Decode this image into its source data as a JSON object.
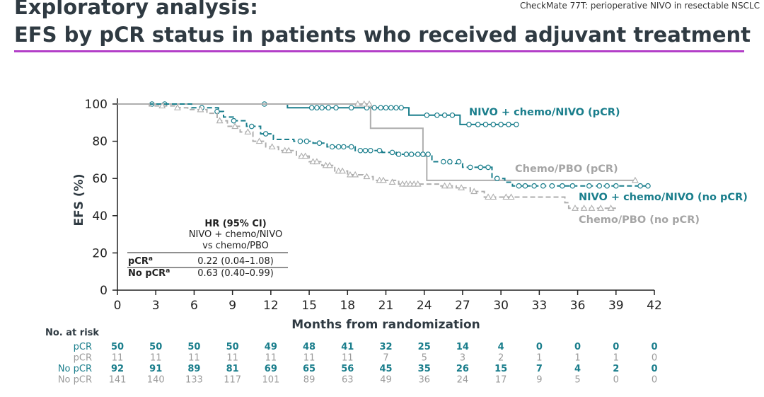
{
  "header": {
    "title_line1": "Exploratory analysis:",
    "title_line2": "EFS by pCR status in patients who received adjuvant treatment",
    "subtitle": "CheckMate 77T: perioperative NIVO in resectable NSCLC"
  },
  "colors": {
    "teal": "#1a7e8c",
    "gray": "#aeaeae",
    "accent": "#b33fc8",
    "axis": "#222222"
  },
  "chart_data": {
    "type": "line",
    "xlabel": "Months from randomization",
    "ylabel": "EFS (%)",
    "xlim": [
      0,
      42
    ],
    "ylim": [
      0,
      100
    ],
    "xticks": [
      0,
      3,
      6,
      9,
      12,
      15,
      18,
      21,
      24,
      27,
      30,
      33,
      36,
      39,
      42
    ],
    "yticks": [
      0,
      20,
      40,
      60,
      80,
      100
    ],
    "series": [
      {
        "name": "NIVO + chemo/NIVO (pCR)",
        "color": "#1a7e8c",
        "dash": false,
        "marker": "circle",
        "steps": [
          [
            0,
            100
          ],
          [
            13.3,
            98
          ],
          [
            22.8,
            94
          ],
          [
            26.8,
            89
          ],
          [
            31.2,
            89
          ]
        ],
        "censors": [
          [
            2.7,
            100
          ],
          [
            3.7,
            100
          ],
          [
            11.5,
            100
          ],
          [
            15.2,
            98
          ],
          [
            15.6,
            98
          ],
          [
            16,
            98
          ],
          [
            16.5,
            98
          ],
          [
            17.1,
            98
          ],
          [
            18.3,
            98
          ],
          [
            19.5,
            98
          ],
          [
            20.1,
            98
          ],
          [
            20.6,
            98
          ],
          [
            21,
            98
          ],
          [
            21.4,
            98
          ],
          [
            21.8,
            98
          ],
          [
            22.2,
            98
          ],
          [
            24.2,
            94
          ],
          [
            25,
            94
          ],
          [
            25.6,
            94
          ],
          [
            26.2,
            94
          ],
          [
            27.5,
            89
          ],
          [
            28.2,
            89
          ],
          [
            28.8,
            89
          ],
          [
            29.4,
            89
          ],
          [
            30,
            89
          ],
          [
            30.6,
            89
          ],
          [
            31.2,
            89
          ]
        ]
      },
      {
        "name": "Chemo/PBO (pCR)",
        "color": "#aeaeae",
        "dash": false,
        "marker": "triangle",
        "steps": [
          [
            0,
            100
          ],
          [
            19.8,
            87
          ],
          [
            23.9,
            72
          ],
          [
            24.2,
            59
          ],
          [
            40.5,
            59
          ]
        ],
        "censors": [
          [
            18.8,
            100
          ],
          [
            19.3,
            100
          ],
          [
            19.7,
            100
          ],
          [
            40.5,
            59
          ]
        ]
      },
      {
        "name": "NIVO + chemo/NIVO (no pCR)",
        "color": "#1a7e8c",
        "dash": true,
        "marker": "circle",
        "steps": [
          [
            0,
            100
          ],
          [
            5.8,
            98
          ],
          [
            7.9,
            96
          ],
          [
            8.3,
            93
          ],
          [
            9.2,
            91
          ],
          [
            10.1,
            88
          ],
          [
            11.2,
            84
          ],
          [
            12.2,
            81
          ],
          [
            13.8,
            80
          ],
          [
            15.3,
            79
          ],
          [
            16.4,
            77
          ],
          [
            18.6,
            75
          ],
          [
            20.7,
            74
          ],
          [
            21.8,
            73
          ],
          [
            24.3,
            73
          ],
          [
            24.6,
            69
          ],
          [
            25.9,
            68
          ],
          [
            26.3,
            68
          ],
          [
            27,
            66
          ],
          [
            28,
            66
          ],
          [
            29.3,
            60
          ],
          [
            30.3,
            58
          ],
          [
            30.9,
            56
          ],
          [
            41.5,
            56
          ]
        ],
        "censors": [
          [
            6.6,
            98
          ],
          [
            7.8,
            96
          ],
          [
            9.1,
            91
          ],
          [
            10.5,
            88
          ],
          [
            11.6,
            84
          ],
          [
            14.3,
            80
          ],
          [
            14.8,
            80
          ],
          [
            15.8,
            79
          ],
          [
            16.8,
            77
          ],
          [
            17.3,
            77
          ],
          [
            17.7,
            77
          ],
          [
            18.3,
            77
          ],
          [
            19,
            75
          ],
          [
            19.4,
            75
          ],
          [
            19.8,
            75
          ],
          [
            20.5,
            75
          ],
          [
            21.5,
            74
          ],
          [
            22,
            73
          ],
          [
            22.6,
            73
          ],
          [
            23,
            73
          ],
          [
            23.5,
            73
          ],
          [
            23.9,
            73
          ],
          [
            24.3,
            73
          ],
          [
            25.5,
            69
          ],
          [
            26,
            69
          ],
          [
            26.7,
            69
          ],
          [
            27.6,
            66
          ],
          [
            28.4,
            66
          ],
          [
            29,
            66
          ],
          [
            29.7,
            60
          ],
          [
            31.4,
            56
          ],
          [
            31.9,
            56
          ],
          [
            32.6,
            56
          ],
          [
            33.3,
            56
          ],
          [
            34,
            56
          ],
          [
            34.8,
            56
          ],
          [
            35.6,
            56
          ],
          [
            36.9,
            56
          ],
          [
            37.7,
            56
          ],
          [
            38.3,
            56
          ],
          [
            39,
            56
          ],
          [
            40.9,
            56
          ],
          [
            41.5,
            56
          ]
        ]
      },
      {
        "name": "Chemo/PBO (no pCR)",
        "color": "#aeaeae",
        "dash": true,
        "marker": "triangle",
        "steps": [
          [
            0,
            100
          ],
          [
            2.5,
            99
          ],
          [
            4.5,
            98
          ],
          [
            5.5,
            97
          ],
          [
            7,
            95
          ],
          [
            7.8,
            91
          ],
          [
            8.6,
            88
          ],
          [
            9.6,
            85
          ],
          [
            10.6,
            80
          ],
          [
            11.6,
            77
          ],
          [
            12.6,
            75
          ],
          [
            14,
            72
          ],
          [
            15,
            69
          ],
          [
            16,
            67
          ],
          [
            17,
            64
          ],
          [
            18,
            62
          ],
          [
            19.2,
            61
          ],
          [
            20,
            59
          ],
          [
            22,
            57
          ],
          [
            24,
            57
          ],
          [
            25.2,
            56
          ],
          [
            26.5,
            55
          ],
          [
            27.6,
            53
          ],
          [
            28.7,
            50
          ],
          [
            31,
            50
          ],
          [
            35,
            47
          ],
          [
            35.3,
            44
          ],
          [
            39,
            44
          ]
        ],
        "censors": [
          [
            3.5,
            99
          ],
          [
            4.7,
            98
          ],
          [
            6.5,
            97
          ],
          [
            8,
            91
          ],
          [
            9.2,
            88
          ],
          [
            10.2,
            85
          ],
          [
            11.1,
            80
          ],
          [
            12.1,
            77
          ],
          [
            13.1,
            75
          ],
          [
            13.4,
            75
          ],
          [
            14.4,
            72
          ],
          [
            14.7,
            72
          ],
          [
            15.3,
            69
          ],
          [
            15.6,
            69
          ],
          [
            16.3,
            67
          ],
          [
            16.6,
            67
          ],
          [
            17.3,
            64
          ],
          [
            17.6,
            64
          ],
          [
            18.2,
            62
          ],
          [
            18.6,
            62
          ],
          [
            19.5,
            61
          ],
          [
            20.5,
            59
          ],
          [
            20.8,
            59
          ],
          [
            21.5,
            58
          ],
          [
            22.3,
            57
          ],
          [
            22.6,
            57
          ],
          [
            22.9,
            57
          ],
          [
            23.2,
            57
          ],
          [
            23.5,
            57
          ],
          [
            25.6,
            56
          ],
          [
            26,
            56
          ],
          [
            26.9,
            55
          ],
          [
            27.9,
            53
          ],
          [
            29,
            50
          ],
          [
            29.4,
            50
          ],
          [
            30.4,
            50
          ],
          [
            30.8,
            50
          ],
          [
            35.8,
            44
          ],
          [
            36.5,
            44
          ],
          [
            37.1,
            44
          ],
          [
            37.8,
            44
          ],
          [
            38.6,
            44
          ]
        ]
      }
    ],
    "series_labels": [
      "NIVO + chemo/NIVO (pCR)",
      "Chemo/PBO (pCR)",
      "NIVO + chemo/NIVO (no pCR)",
      "Chemo/PBO (no pCR)"
    ],
    "hr_table": {
      "heading": "HR (95% CI)",
      "sub1": "NIVO + chemo/NIVO",
      "sub2": "vs chemo/PBO",
      "rows": [
        {
          "label": "pCR",
          "sup": "a",
          "value": "0.22 (0.04–1.08)"
        },
        {
          "label": "No pCR",
          "sup": "a",
          "value": "0.63 (0.40–0.99)"
        }
      ]
    },
    "risk_table": {
      "title": "No. at risk",
      "times": [
        0,
        3,
        6,
        9,
        12,
        15,
        18,
        21,
        24,
        27,
        30,
        33,
        36,
        39,
        42
      ],
      "rows": [
        {
          "label": "pCR",
          "color": "#1a7e8c",
          "values": [
            50,
            50,
            50,
            50,
            49,
            48,
            41,
            32,
            25,
            14,
            4,
            0,
            0,
            0,
            0
          ]
        },
        {
          "label": "pCR",
          "color": "#9a9a9a",
          "values": [
            11,
            11,
            11,
            11,
            11,
            11,
            11,
            7,
            5,
            3,
            2,
            1,
            1,
            1,
            0
          ]
        },
        {
          "label": "No pCR",
          "color": "#1a7e8c",
          "values": [
            92,
            91,
            89,
            81,
            69,
            65,
            56,
            45,
            35,
            26,
            15,
            7,
            4,
            2,
            0
          ]
        },
        {
          "label": "No pCR",
          "color": "#9a9a9a",
          "values": [
            141,
            140,
            133,
            117,
            101,
            89,
            63,
            49,
            36,
            24,
            17,
            9,
            5,
            0,
            0
          ]
        }
      ]
    }
  }
}
